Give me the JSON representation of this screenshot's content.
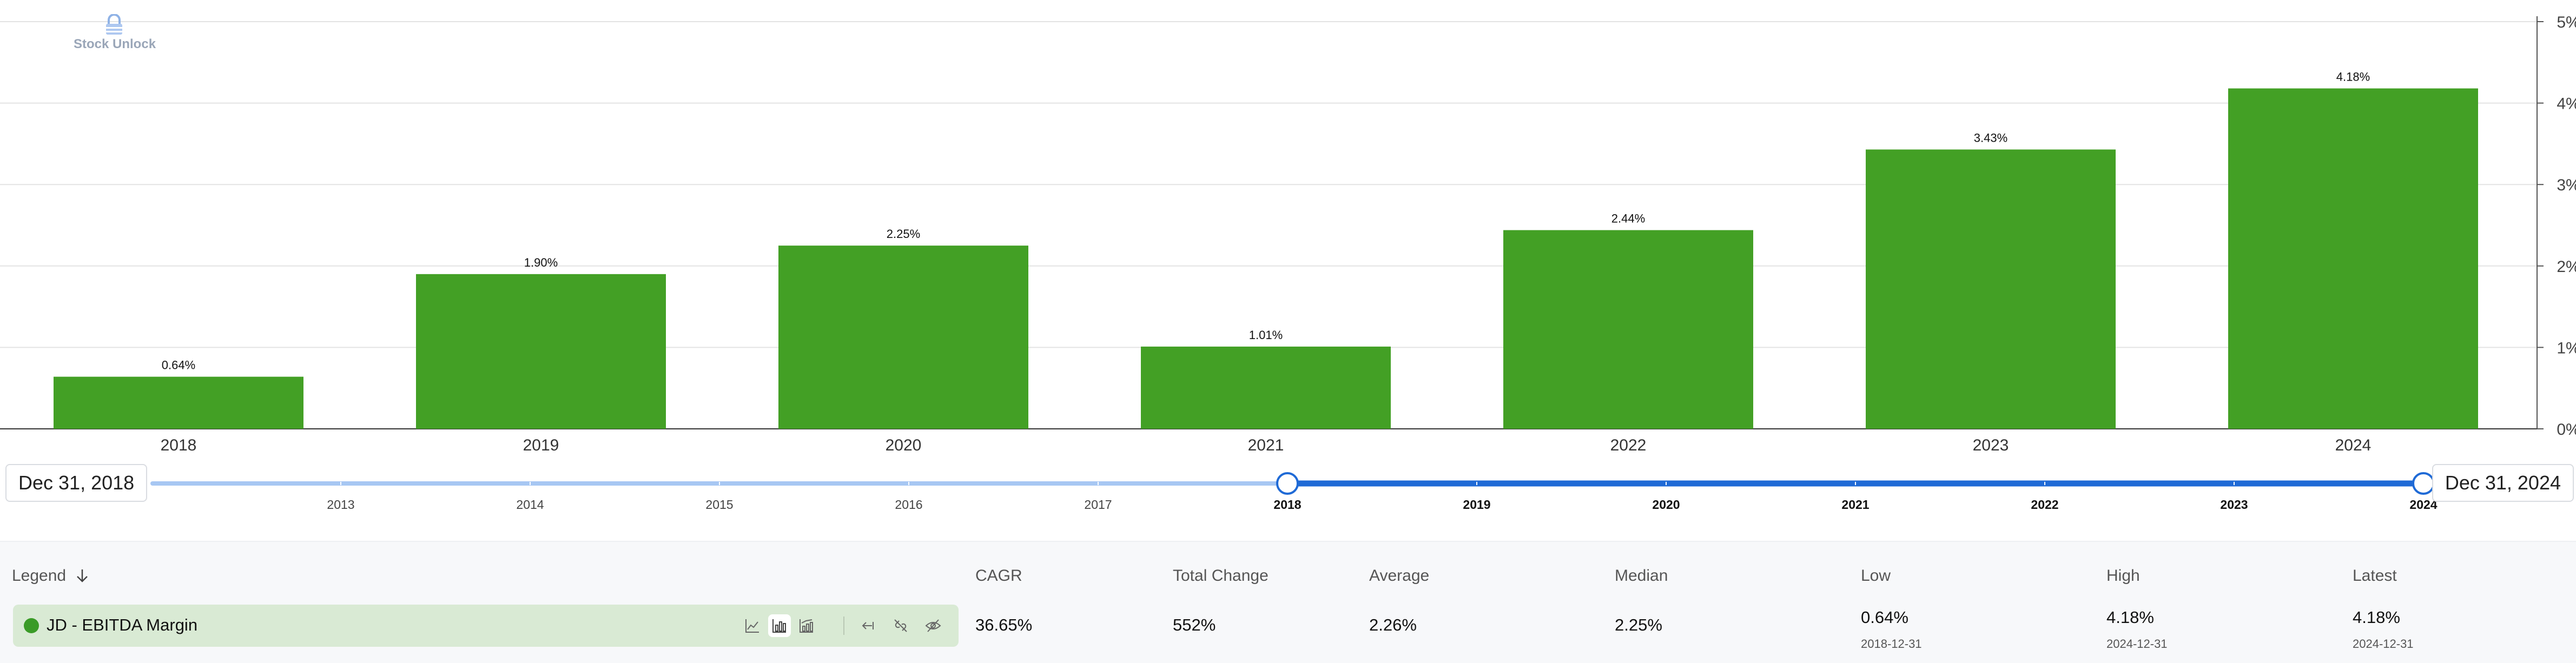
{
  "logo": {
    "text": "Stock Unlock"
  },
  "chart_data": {
    "type": "bar",
    "categories": [
      "2018",
      "2019",
      "2020",
      "2021",
      "2022",
      "2023",
      "2024"
    ],
    "series": [
      {
        "name": "JD - EBITDA Margin",
        "values": [
          0.64,
          1.9,
          2.25,
          1.01,
          2.44,
          3.43,
          4.18
        ],
        "color": "#43a025"
      }
    ],
    "data_labels": [
      "0.64%",
      "1.90%",
      "2.25%",
      "1.01%",
      "2.44%",
      "3.43%",
      "4.18%"
    ],
    "y_axis": {
      "position": "right",
      "ylim": [
        0,
        5
      ],
      "ticks": [
        "0%",
        "1%",
        "2%",
        "3%",
        "4%",
        "5%"
      ]
    },
    "grid": true,
    "title": "",
    "xlabel": "",
    "ylabel": ""
  },
  "range_slider": {
    "start_label": "Dec 31, 2018",
    "end_label": "Dec 31, 2024",
    "years": [
      "2013",
      "2014",
      "2015",
      "2016",
      "2017",
      "2018",
      "2019",
      "2020",
      "2021",
      "2022",
      "2023",
      "2024"
    ],
    "selected_start": "2018",
    "selected_end": "2024"
  },
  "stats": {
    "legend_label": "Legend",
    "legend_sort_icon": "arrow-down-icon",
    "series_name": "JD - EBITDA Margin",
    "series_color": "#3a9b27",
    "cagr": {
      "label": "CAGR",
      "value": "36.65%"
    },
    "total_change": {
      "label": "Total Change",
      "value": "552%"
    },
    "average": {
      "label": "Average",
      "value": "2.26%"
    },
    "median": {
      "label": "Median",
      "value": "2.25%"
    },
    "low": {
      "label": "Low",
      "value": "0.64%",
      "date": "2018-12-31"
    },
    "high": {
      "label": "High",
      "value": "4.18%",
      "date": "2024-12-31"
    },
    "latest": {
      "label": "Latest",
      "value": "4.18%",
      "date": "2024-12-31"
    }
  },
  "toolbar_icons": [
    "line-chart-icon",
    "bar-chart-icon",
    "bar-line-chart-icon",
    "arrow-left-bar-icon",
    "unlink-icon",
    "eye-off-icon"
  ]
}
